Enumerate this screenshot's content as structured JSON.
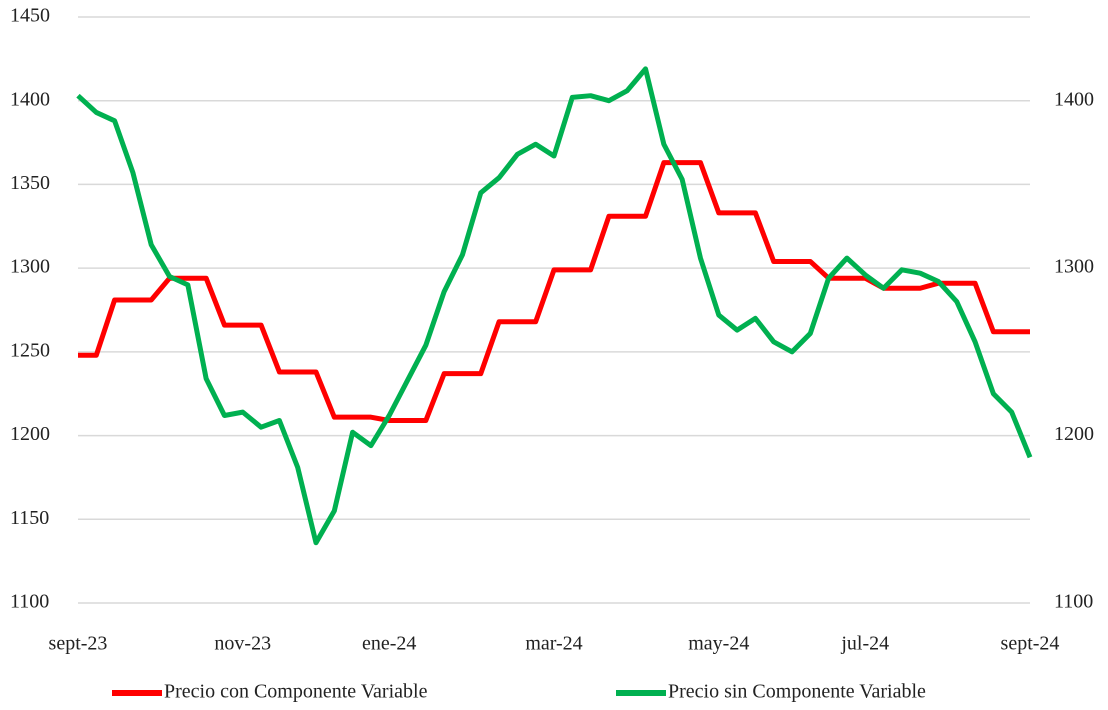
{
  "chart_data": {
    "type": "line",
    "categories": [
      "sept-23",
      null,
      null,
      null,
      null,
      null,
      null,
      null,
      null,
      "nov-23",
      null,
      null,
      null,
      null,
      null,
      null,
      null,
      "ene-24",
      null,
      null,
      null,
      null,
      null,
      null,
      null,
      null,
      "mar-24",
      null,
      null,
      null,
      null,
      null,
      null,
      null,
      null,
      "may-24",
      null,
      null,
      null,
      null,
      null,
      null,
      null,
      "jul-24",
      null,
      null,
      null,
      null,
      null,
      null,
      null,
      null,
      "sept-24"
    ],
    "series": [
      {
        "name": "Precio con Componente Variable",
        "color": "#ff0000",
        "values": [
          1248,
          1248,
          1281,
          1281,
          1281,
          1294,
          1294,
          1294,
          1266,
          1266,
          1266,
          1238,
          1238,
          1238,
          1211,
          1211,
          1211,
          1209,
          1209,
          1209,
          1237,
          1237,
          1237,
          1268,
          1268,
          1268,
          1299,
          1299,
          1299,
          1331,
          1331,
          1331,
          1363,
          1363,
          1363,
          1333,
          1333,
          1333,
          1304,
          1304,
          1304,
          1294,
          1294,
          1294,
          1288,
          1288,
          1288,
          1291,
          1291,
          1291,
          1262,
          1262,
          1262
        ]
      },
      {
        "name": "Precio sin Componente Variable",
        "color": "#00b050",
        "axis": "y2",
        "values": [
          1403,
          1393,
          1388,
          1357,
          1314,
          1295,
          1290,
          1234,
          1212,
          1214,
          1205,
          1209,
          1181,
          1136,
          1155,
          1202,
          1194,
          1212,
          1233,
          1254,
          1286,
          1308,
          1345,
          1354,
          1368,
          1374,
          1367,
          1402,
          1403,
          1400,
          1406,
          1419,
          1374,
          1353,
          1306,
          1272,
          1263,
          1270,
          1256,
          1250,
          1261,
          1294,
          1306,
          1296,
          1288,
          1299,
          1297,
          1292,
          1280,
          1256,
          1225,
          1214,
          1187
        ]
      }
    ],
    "ylim": [
      1100,
      1450
    ],
    "yticks": [
      1100,
      1150,
      1200,
      1250,
      1300,
      1350,
      1400,
      1450
    ],
    "y2lim": [
      1100,
      1450
    ],
    "y2ticks": [
      1100,
      1200,
      1300,
      1400
    ],
    "grid": true,
    "legend": "bottom"
  }
}
